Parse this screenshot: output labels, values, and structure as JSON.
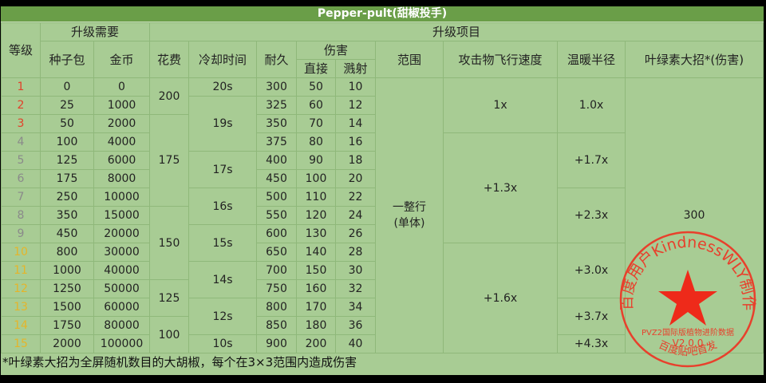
{
  "title": "Pepper-pult(甜椒投手)",
  "headers": {
    "level": "等级",
    "upgrade_needs": "升级需要",
    "seed_packets": "种子包",
    "coins": "金币",
    "upgrade_items": "升级项目",
    "cost": "花费",
    "cooldown": "冷却时间",
    "toughness": "耐久",
    "damage": "伤害",
    "direct": "直接",
    "splash": "溅射",
    "range": "范围",
    "projectile_speed": "攻击物飞行速度",
    "warmth_radius": "温暖半径",
    "plant_food": "叶绿素大招*(伤害)"
  },
  "rows": [
    {
      "level": "1",
      "seeds": "0",
      "coins": "0",
      "toughness": "300",
      "direct": "50",
      "splash": "10"
    },
    {
      "level": "2",
      "seeds": "25",
      "coins": "1000",
      "toughness": "325",
      "direct": "60",
      "splash": "12"
    },
    {
      "level": "3",
      "seeds": "50",
      "coins": "2000",
      "toughness": "350",
      "direct": "70",
      "splash": "14"
    },
    {
      "level": "4",
      "seeds": "100",
      "coins": "4000",
      "toughness": "375",
      "direct": "80",
      "splash": "16"
    },
    {
      "level": "5",
      "seeds": "125",
      "coins": "6000",
      "toughness": "400",
      "direct": "90",
      "splash": "18"
    },
    {
      "level": "6",
      "seeds": "175",
      "coins": "8000",
      "toughness": "450",
      "direct": "100",
      "splash": "20"
    },
    {
      "level": "7",
      "seeds": "250",
      "coins": "10000",
      "toughness": "500",
      "direct": "110",
      "splash": "22"
    },
    {
      "level": "8",
      "seeds": "350",
      "coins": "15000",
      "toughness": "550",
      "direct": "120",
      "splash": "24"
    },
    {
      "level": "9",
      "seeds": "450",
      "coins": "20000",
      "toughness": "600",
      "direct": "130",
      "splash": "26"
    },
    {
      "level": "10",
      "seeds": "800",
      "coins": "30000",
      "toughness": "650",
      "direct": "140",
      "splash": "28"
    },
    {
      "level": "11",
      "seeds": "1000",
      "coins": "40000",
      "toughness": "700",
      "direct": "150",
      "splash": "30"
    },
    {
      "level": "12",
      "seeds": "1250",
      "coins": "50000",
      "toughness": "750",
      "direct": "160",
      "splash": "32"
    },
    {
      "level": "13",
      "seeds": "1500",
      "coins": "60000",
      "toughness": "800",
      "direct": "170",
      "splash": "34"
    },
    {
      "level": "14",
      "seeds": "1750",
      "coins": "80000",
      "toughness": "850",
      "direct": "180",
      "splash": "36"
    },
    {
      "level": "15",
      "seeds": "2000",
      "coins": "100000",
      "toughness": "900",
      "direct": "200",
      "splash": "40"
    }
  ],
  "merged": {
    "cost": [
      {
        "from": 1,
        "span": 2,
        "value": "200"
      },
      {
        "from": 3,
        "span": 5,
        "value": "175"
      },
      {
        "from": 8,
        "span": 4,
        "value": "150"
      },
      {
        "from": 12,
        "span": 2,
        "value": "125"
      },
      {
        "from": 14,
        "span": 2,
        "value": "100"
      }
    ],
    "cooldown": [
      {
        "from": 1,
        "span": 1,
        "value": "20s"
      },
      {
        "from": 2,
        "span": 3,
        "value": "19s"
      },
      {
        "from": 5,
        "span": 2,
        "value": "17s"
      },
      {
        "from": 7,
        "span": 2,
        "value": "16s"
      },
      {
        "from": 9,
        "span": 2,
        "value": "15s"
      },
      {
        "from": 11,
        "span": 2,
        "value": "14s"
      },
      {
        "from": 13,
        "span": 2,
        "value": "12s"
      },
      {
        "from": 15,
        "span": 1,
        "value": "10s"
      }
    ],
    "range": [
      {
        "from": 1,
        "span": 15,
        "value": "一整行\n(单体)"
      }
    ],
    "speed": [
      {
        "from": 1,
        "span": 3,
        "value": "1x"
      },
      {
        "from": 4,
        "span": 6,
        "value": "+1.3x"
      },
      {
        "from": 10,
        "span": 6,
        "value": "+1.6x"
      }
    ],
    "warmth": [
      {
        "from": 1,
        "span": 3,
        "value": "1.0x"
      },
      {
        "from": 4,
        "span": 3,
        "value": "+1.7x"
      },
      {
        "from": 7,
        "span": 3,
        "value": "+2.3x"
      },
      {
        "from": 10,
        "span": 3,
        "value": "+3.0x"
      },
      {
        "from": 13,
        "span": 2,
        "value": "+3.7x"
      },
      {
        "from": 15,
        "span": 1,
        "value": "+4.3x"
      }
    ],
    "plant_food": [
      {
        "from": 1,
        "span": 15,
        "value": "300"
      }
    ]
  },
  "level_colors": {
    "1-3": "#e2402a",
    "4-9": "#8a8a8a",
    "10-15": "#e5b52a"
  },
  "footnote": "*叶绿素大招为全屏随机数目的大胡椒，每个在3×3范围内造成伤害",
  "stamp": {
    "top_text": "百度用户KindnessWLY制作",
    "line1": "PVZ2国际版植物进阶数据",
    "line2": "V2.0.0",
    "bottom_text": "百度贴吧首发",
    "color": "#e8402c"
  }
}
